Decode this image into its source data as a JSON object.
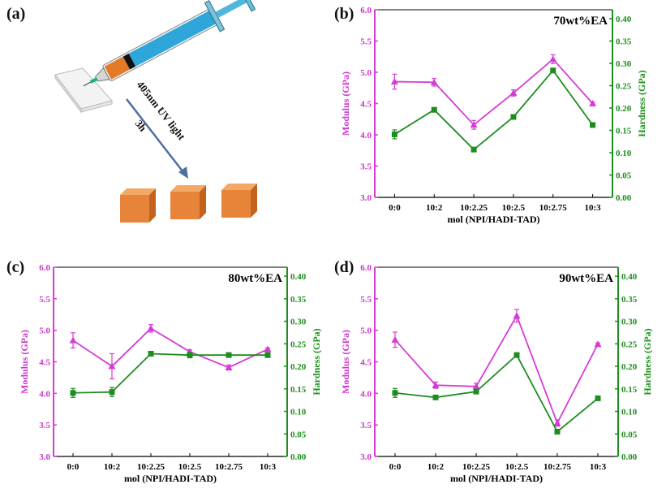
{
  "panel_labels": {
    "a": "(a)",
    "b": "(b)",
    "c": "(c)",
    "d": "(d)"
  },
  "schematic": {
    "uv_text": "405nm UV light",
    "time_text": "3h"
  },
  "colors": {
    "modulus": "#d63bd6",
    "hardness": "#1f8c1f",
    "cube": "#e8833a"
  },
  "chart_data": [
    {
      "panel": "b",
      "type": "line",
      "title": "70wt%EA",
      "categories": [
        "0:0",
        "10:2",
        "10:2.25",
        "10:2.5",
        "10:2.75",
        "10:3"
      ],
      "xlabel": "mol (NPI/HADI-TAD)",
      "ylabel_left": "Modulus (GPa)",
      "ylabel_right": "Hardness (GPa)",
      "ylim_left": [
        3.0,
        6.0
      ],
      "ylim_right": [
        0.0,
        0.42
      ],
      "yticks_left": [
        "3.0",
        "3.5",
        "4.0",
        "4.5",
        "5.0",
        "5.5",
        "6.0"
      ],
      "yticks_right": [
        "0.00",
        "0.05",
        "0.10",
        "0.15",
        "0.20",
        "0.25",
        "0.30",
        "0.35",
        "0.40"
      ],
      "series": [
        {
          "name": "Modulus",
          "axis": "left",
          "marker": "triangle",
          "values": [
            4.85,
            4.84,
            4.16,
            4.67,
            5.21,
            4.5
          ],
          "errors": [
            0.12,
            0.06,
            0.07,
            0.05,
            0.07,
            0.02
          ]
        },
        {
          "name": "Hardness",
          "axis": "right",
          "marker": "square",
          "values": [
            0.141,
            0.196,
            0.107,
            0.18,
            0.284,
            0.162
          ],
          "errors": [
            0.01,
            0.004,
            0.004,
            0.005,
            0.004,
            0.003
          ]
        }
      ]
    },
    {
      "panel": "c",
      "type": "line",
      "title": "80wt%EA",
      "categories": [
        "0:0",
        "10:2",
        "10:2.25",
        "10:2.5",
        "10:2.75",
        "10:3"
      ],
      "xlabel": "mol (NPI/HADI-TAD)",
      "ylabel_left": "Modulus (GPa)",
      "ylabel_right": "Hardness (GPa)",
      "ylim_left": [
        3.0,
        6.0
      ],
      "ylim_right": [
        0.0,
        0.42
      ],
      "yticks_left": [
        "3.0",
        "3.5",
        "4.0",
        "4.5",
        "5.0",
        "5.5",
        "6.0"
      ],
      "yticks_right": [
        "0.00",
        "0.05",
        "0.10",
        "0.15",
        "0.20",
        "0.25",
        "0.30",
        "0.35",
        "0.40"
      ],
      "series": [
        {
          "name": "Modulus",
          "axis": "left",
          "marker": "triangle",
          "values": [
            4.84,
            4.43,
            5.03,
            4.66,
            4.41,
            4.7
          ],
          "errors": [
            0.12,
            0.2,
            0.06,
            0.03,
            0.04,
            0.02
          ]
        },
        {
          "name": "Hardness",
          "axis": "right",
          "marker": "square",
          "values": [
            0.141,
            0.143,
            0.228,
            0.225,
            0.225,
            0.225
          ],
          "errors": [
            0.01,
            0.01,
            0.003,
            0.006,
            0.004,
            0.004
          ]
        }
      ]
    },
    {
      "panel": "d",
      "type": "line",
      "title": "90wt%EA",
      "categories": [
        "0:0",
        "10:2",
        "10:2.25",
        "10:2.5",
        "10:2.75",
        "10:3"
      ],
      "xlabel": "mol (NPI/HADI-TAD)",
      "ylabel_left": "Modulus (GPa)",
      "ylabel_right": "Hardness (GPa)",
      "ylim_left": [
        3.0,
        6.0
      ],
      "ylim_right": [
        0.0,
        0.42
      ],
      "yticks_left": [
        "3.0",
        "3.5",
        "4.0",
        "4.5",
        "5.0",
        "5.5",
        "6.0"
      ],
      "yticks_right": [
        "0.00",
        "0.05",
        "0.10",
        "0.15",
        "0.20",
        "0.25",
        "0.30",
        "0.35",
        "0.40"
      ],
      "series": [
        {
          "name": "Modulus",
          "axis": "left",
          "marker": "triangle",
          "values": [
            4.85,
            4.13,
            4.11,
            5.23,
            3.53,
            4.78
          ],
          "errors": [
            0.12,
            0.05,
            0.05,
            0.1,
            0.05,
            0.02
          ]
        },
        {
          "name": "Hardness",
          "axis": "right",
          "marker": "square",
          "values": [
            0.141,
            0.131,
            0.144,
            0.225,
            0.055,
            0.129
          ],
          "errors": [
            0.01,
            0.004,
            0.004,
            0.005,
            0.004,
            0.003
          ]
        }
      ]
    }
  ]
}
